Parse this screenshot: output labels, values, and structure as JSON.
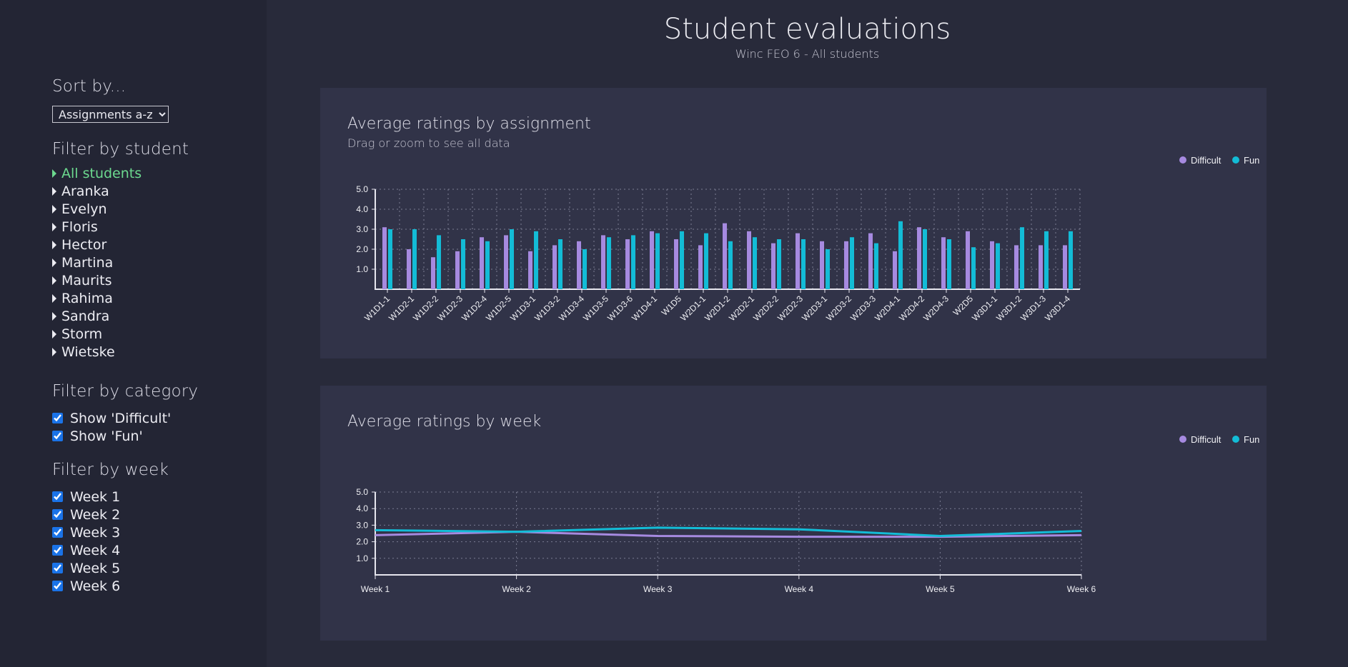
{
  "sidebar": {
    "sort_heading": "Sort by...",
    "sort_selected": "Assignments a-z",
    "student_heading": "Filter by student",
    "students": [
      {
        "label": "All students",
        "active": true
      },
      {
        "label": "Aranka",
        "active": false
      },
      {
        "label": "Evelyn",
        "active": false
      },
      {
        "label": "Floris",
        "active": false
      },
      {
        "label": "Hector",
        "active": false
      },
      {
        "label": "Martina",
        "active": false
      },
      {
        "label": "Maurits",
        "active": false
      },
      {
        "label": "Rahima",
        "active": false
      },
      {
        "label": "Sandra",
        "active": false
      },
      {
        "label": "Storm",
        "active": false
      },
      {
        "label": "Wietske",
        "active": false
      }
    ],
    "category_heading": "Filter by category",
    "categories": [
      {
        "label": "Show 'Difficult'",
        "checked": true
      },
      {
        "label": "Show 'Fun'",
        "checked": true
      }
    ],
    "week_heading": "Filter by week",
    "weeks": [
      {
        "label": "Week 1",
        "checked": true
      },
      {
        "label": "Week 2",
        "checked": true
      },
      {
        "label": "Week 3",
        "checked": true
      },
      {
        "label": "Week 4",
        "checked": true
      },
      {
        "label": "Week 5",
        "checked": true
      },
      {
        "label": "Week 6",
        "checked": true
      }
    ]
  },
  "header": {
    "title": "Student evaluations",
    "subtitle": "Winc FEO 6 - All students"
  },
  "colors": {
    "difficult": "#a68ae0",
    "fun": "#13bcd6",
    "active_student": "#6cd98f"
  },
  "assignment_card": {
    "title": "Average ratings by assignment",
    "subtitle": "Drag or zoom to see all data"
  },
  "week_card": {
    "title": "Average ratings by week"
  },
  "chart_data": [
    {
      "type": "bar",
      "title": "Average ratings by assignment",
      "subtitle": "Drag or zoom to see all data",
      "categories": [
        "W1D1-1",
        "W1D2-1",
        "W1D2-2",
        "W1D2-3",
        "W1D2-4",
        "W1D2-5",
        "W1D3-1",
        "W1D3-2",
        "W1D3-4",
        "W1D3-5",
        "W1D3-6",
        "W1D4-1",
        "W1D5",
        "W2D1-1",
        "W2D1-2",
        "W2D2-1",
        "W2D2-2",
        "W2D2-3",
        "W2D3-1",
        "W2D3-2",
        "W2D3-3",
        "W2D4-1",
        "W2D4-2",
        "W2D4-3",
        "W2D5",
        "W3D1-1",
        "W3D1-2",
        "W3D1-3",
        "W3D1-4"
      ],
      "series": [
        {
          "name": "Difficult",
          "values": [
            3.1,
            2.0,
            1.6,
            1.9,
            2.6,
            2.7,
            1.9,
            2.2,
            2.4,
            2.7,
            2.5,
            2.9,
            2.5,
            2.2,
            3.3,
            2.9,
            2.3,
            2.8,
            2.4,
            2.4,
            2.8,
            1.9,
            3.1,
            2.6,
            2.9,
            2.4,
            2.2,
            2.2,
            2.2
          ]
        },
        {
          "name": "Fun",
          "values": [
            3.0,
            3.0,
            2.7,
            2.5,
            2.4,
            3.0,
            2.9,
            2.5,
            2.0,
            2.6,
            2.7,
            2.8,
            2.9,
            2.8,
            2.4,
            2.6,
            2.5,
            2.5,
            2.0,
            2.6,
            2.3,
            3.4,
            3.0,
            2.5,
            2.1,
            2.3,
            3.1,
            2.9,
            2.9
          ]
        }
      ],
      "yticks": [
        "1.0",
        "2.0",
        "3.0",
        "4.0",
        "5.0"
      ],
      "ylim": [
        0,
        5
      ],
      "grid": true,
      "legend": "top-right"
    },
    {
      "type": "line",
      "title": "Average ratings by week",
      "categories": [
        "Week 1",
        "Week 2",
        "Week 3",
        "Week 4",
        "Week 5",
        "Week 6"
      ],
      "series": [
        {
          "name": "Difficult",
          "values": [
            2.4,
            2.6,
            2.35,
            2.3,
            2.3,
            2.4
          ]
        },
        {
          "name": "Fun",
          "values": [
            2.7,
            2.6,
            2.85,
            2.75,
            2.35,
            2.65
          ]
        }
      ],
      "yticks": [
        "1.0",
        "2.0",
        "3.0",
        "4.0",
        "5.0"
      ],
      "ylim": [
        0,
        5
      ],
      "grid": true,
      "legend": "top-right"
    }
  ]
}
